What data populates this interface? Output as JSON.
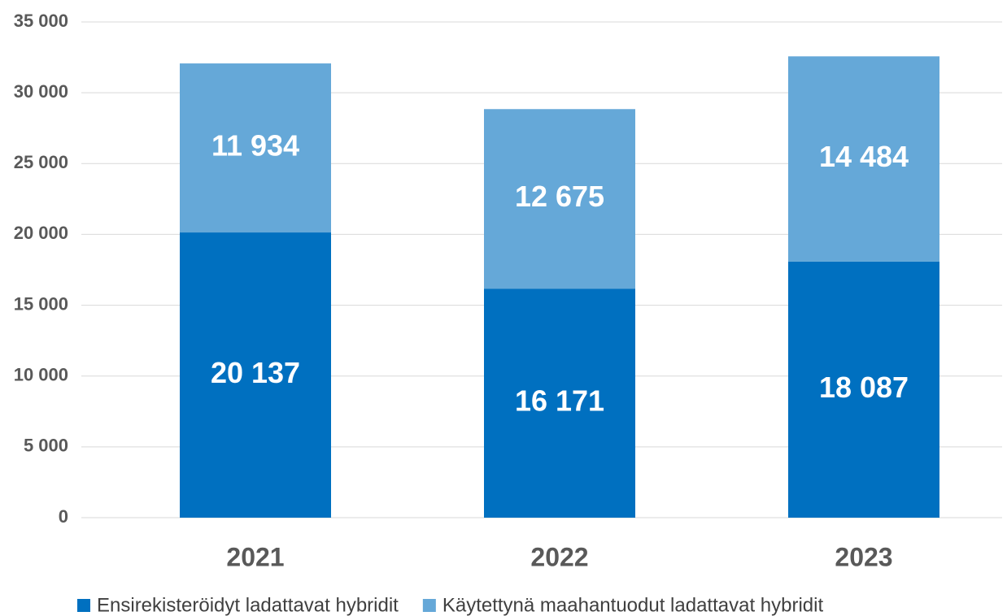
{
  "chart_data": {
    "type": "stacked_bar",
    "categories": [
      "2021",
      "2022",
      "2023"
    ],
    "series": [
      {
        "name": "Ensirekisteröidyt ladattavat hybridit",
        "color": "#0070c0",
        "values": [
          20137,
          16171,
          18087
        ],
        "value_labels": [
          "20 137",
          "16 171",
          "18 087"
        ]
      },
      {
        "name": "Käytettynä maahantuodut ladattavat hybridit",
        "color": "#65a8d8",
        "values": [
          11934,
          12675,
          14484
        ],
        "value_labels": [
          "11 934",
          "12 675",
          "14 484"
        ]
      }
    ],
    "ylim": [
      0,
      35000
    ],
    "yticks": [
      {
        "value": 0,
        "label": "0"
      },
      {
        "value": 5000,
        "label": "5 000"
      },
      {
        "value": 10000,
        "label": "10 000"
      },
      {
        "value": 15000,
        "label": "15 000"
      },
      {
        "value": 20000,
        "label": "20 000"
      },
      {
        "value": 25000,
        "label": "25 000"
      },
      {
        "value": 30000,
        "label": "30 000"
      },
      {
        "value": 35000,
        "label": "35 000"
      }
    ],
    "grid": true,
    "legend": "bottom"
  }
}
